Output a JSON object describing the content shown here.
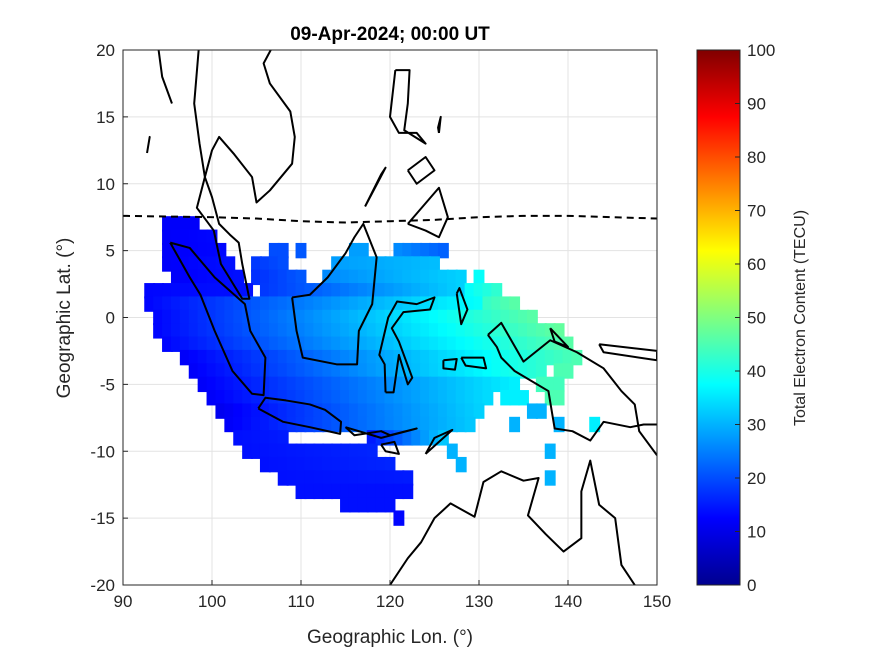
{
  "chart_data": {
    "type": "heatmap",
    "title": "09-Apr-2024; 00:00 UT",
    "xlabel": "Geographic Lon. (°)",
    "ylabel": "Geographic Lat. (°)",
    "xlim": [
      90,
      150
    ],
    "ylim": [
      -20,
      20
    ],
    "xticks": [
      "90",
      "100",
      "110",
      "120",
      "130",
      "140",
      "150"
    ],
    "yticks": [
      "20",
      "15",
      "10",
      "5",
      "0",
      "-5",
      "-10",
      "-15",
      "-20"
    ],
    "grid": true,
    "colorbar": {
      "label": "Total Electron Content (TECU)",
      "colormap": "jet",
      "range": [
        0,
        100
      ],
      "ticks": [
        "100",
        "90",
        "80",
        "70",
        "60",
        "50",
        "40",
        "30",
        "20",
        "10",
        "0"
      ]
    },
    "tec_cells_by_latitude": [
      {
        "lat": 7,
        "spans": [
          [
            95,
            98,
            12,
            12
          ]
        ]
      },
      {
        "lat": 6,
        "spans": [
          [
            95,
            100,
            12,
            13
          ]
        ]
      },
      {
        "lat": 5,
        "spans": [
          [
            95,
            101,
            12,
            13
          ],
          [
            107,
            108,
            20,
            20
          ],
          [
            110,
            110,
            21,
            21
          ],
          [
            116,
            117,
            28,
            28
          ],
          [
            121,
            126,
            26,
            22
          ]
        ]
      },
      {
        "lat": 4,
        "spans": [
          [
            95,
            102,
            12,
            14
          ],
          [
            105,
            108,
            18,
            20
          ],
          [
            114,
            125,
            28,
            31
          ]
        ]
      },
      {
        "lat": 3,
        "spans": [
          [
            96,
            103,
            12,
            14
          ],
          [
            105,
            110,
            17,
            21
          ],
          [
            113,
            128,
            26,
            33
          ],
          [
            130,
            130,
            38,
            38
          ]
        ]
      },
      {
        "lat": 2,
        "spans": [
          [
            93,
            104,
            13,
            14
          ],
          [
            106,
            128,
            18,
            33
          ],
          [
            129,
            132,
            38,
            42
          ]
        ]
      },
      {
        "lat": 1,
        "spans": [
          [
            93,
            130,
            13,
            38
          ],
          [
            131,
            134,
            43,
            46
          ]
        ]
      },
      {
        "lat": 0,
        "spans": [
          [
            94,
            136,
            13,
            46
          ]
        ]
      },
      {
        "lat": -1,
        "spans": [
          [
            94,
            139,
            13,
            47
          ]
        ]
      },
      {
        "lat": -2,
        "spans": [
          [
            95,
            140,
            13,
            46
          ]
        ]
      },
      {
        "lat": -3,
        "spans": [
          [
            97,
            141,
            12,
            45
          ]
        ]
      },
      {
        "lat": -4,
        "spans": [
          [
            98,
            137,
            12,
            42
          ],
          [
            139,
            140,
            45,
            45
          ]
        ]
      },
      {
        "lat": -5,
        "spans": [
          [
            99,
            134,
            12,
            36
          ],
          [
            137,
            139,
            44,
            44
          ]
        ]
      },
      {
        "lat": -6,
        "spans": [
          [
            100,
            131,
            12,
            34
          ],
          [
            133,
            135,
            36,
            36
          ],
          [
            138,
            139,
            45,
            45
          ]
        ]
      },
      {
        "lat": -7,
        "spans": [
          [
            101,
            130,
            11,
            33
          ],
          [
            136,
            137,
            30,
            30
          ]
        ]
      },
      {
        "lat": -8,
        "spans": [
          [
            102,
            129,
            12,
            32
          ],
          [
            134,
            134,
            30,
            30
          ],
          [
            139,
            139,
            30,
            30
          ],
          [
            143,
            143,
            36,
            36
          ]
        ]
      },
      {
        "lat": -9,
        "spans": [
          [
            103,
            108,
            14,
            15
          ],
          [
            118,
            126,
            15,
            32
          ]
        ]
      },
      {
        "lat": -10,
        "spans": [
          [
            104,
            118,
            14,
            16
          ],
          [
            127,
            127,
            30,
            30
          ],
          [
            138,
            138,
            30,
            30
          ]
        ]
      },
      {
        "lat": -11,
        "spans": [
          [
            106,
            120,
            14,
            16
          ],
          [
            128,
            128,
            30,
            30
          ]
        ]
      },
      {
        "lat": -12,
        "spans": [
          [
            108,
            122,
            14,
            15
          ],
          [
            138,
            138,
            30,
            30
          ]
        ]
      },
      {
        "lat": -13,
        "spans": [
          [
            110,
            122,
            14,
            14
          ]
        ]
      },
      {
        "lat": -14,
        "spans": [
          [
            115,
            120,
            14,
            14
          ]
        ]
      },
      {
        "lat": -15,
        "spans": [
          [
            121,
            121,
            13,
            13
          ]
        ]
      }
    ],
    "magnetic_equator": [
      [
        90,
        7.6
      ],
      [
        100,
        7.5
      ],
      [
        105,
        7.4
      ],
      [
        110,
        7.2
      ],
      [
        115,
        7.1
      ],
      [
        120,
        7.2
      ],
      [
        125,
        7.3
      ],
      [
        130,
        7.5
      ],
      [
        135,
        7.6
      ],
      [
        140,
        7.6
      ],
      [
        145,
        7.5
      ],
      [
        150,
        7.4
      ]
    ],
    "coastlines": [
      [
        [
          94,
          20
        ],
        [
          94.4,
          18
        ],
        [
          95.5,
          16
        ]
      ],
      [
        [
          98.5,
          20
        ],
        [
          98,
          16
        ],
        [
          98.6,
          13
        ],
        [
          99.2,
          10.5
        ],
        [
          98.3,
          8.2
        ],
        [
          100.2,
          6.5
        ],
        [
          101,
          4
        ],
        [
          103.4,
          1.4
        ],
        [
          104.2,
          1.4
        ],
        [
          103.4,
          4
        ],
        [
          103,
          5.6
        ],
        [
          102,
          6.2
        ],
        [
          100.8,
          7
        ],
        [
          100,
          9
        ],
        [
          99.2,
          10.5
        ],
        [
          100,
          12.5
        ],
        [
          100.8,
          13.5
        ],
        [
          102.5,
          12.2
        ],
        [
          104.5,
          10.5
        ],
        [
          105,
          8.6
        ],
        [
          106.5,
          9.5
        ],
        [
          109,
          11.5
        ],
        [
          109.3,
          13.5
        ],
        [
          108.8,
          15.4
        ],
        [
          106.5,
          17.5
        ],
        [
          105.8,
          19
        ],
        [
          106.6,
          20
        ]
      ],
      [
        [
          95.3,
          5.6
        ],
        [
          97.5,
          5.2
        ],
        [
          100.3,
          3
        ],
        [
          103.7,
          1
        ],
        [
          104.3,
          -1
        ],
        [
          106,
          -3
        ],
        [
          105.8,
          -5.8
        ],
        [
          104.5,
          -5.7
        ],
        [
          102.3,
          -4
        ],
        [
          100.3,
          -1
        ],
        [
          98.7,
          1.7
        ],
        [
          97.5,
          3
        ],
        [
          95.3,
          5.6
        ]
      ],
      [
        [
          109,
          1.5
        ],
        [
          109.5,
          -1
        ],
        [
          110.2,
          -3
        ],
        [
          114,
          -3.5
        ],
        [
          116.3,
          -3.5
        ],
        [
          116.5,
          -1
        ],
        [
          118,
          1
        ],
        [
          118.5,
          4.5
        ],
        [
          117,
          7
        ],
        [
          116,
          6
        ],
        [
          115,
          4.8
        ],
        [
          113,
          3
        ],
        [
          111,
          1.7
        ],
        [
          109,
          1.5
        ]
      ],
      [
        [
          105.2,
          -6.8
        ],
        [
          106,
          -6
        ],
        [
          108.3,
          -6.2
        ],
        [
          111,
          -6.5
        ],
        [
          112.7,
          -6.9
        ],
        [
          114.5,
          -7.8
        ],
        [
          114.4,
          -8.7
        ],
        [
          111,
          -8.2
        ],
        [
          108,
          -7.8
        ],
        [
          105.2,
          -6.8
        ]
      ],
      [
        [
          115,
          -8.2
        ],
        [
          116,
          -8.8
        ],
        [
          119,
          -8.5
        ],
        [
          120,
          -8.8
        ],
        [
          123,
          -8.3
        ],
        [
          119,
          -9
        ],
        [
          115,
          -8.2
        ]
      ],
      [
        [
          119.5,
          -5.6
        ],
        [
          119.4,
          -3.5
        ],
        [
          118.8,
          -2.8
        ],
        [
          119.8,
          0
        ],
        [
          120.8,
          1.2
        ],
        [
          123,
          1
        ],
        [
          125,
          1.5
        ],
        [
          124.5,
          0.6
        ],
        [
          121.5,
          0.4
        ],
        [
          120.2,
          -0.8
        ],
        [
          121,
          -1.8
        ],
        [
          122.5,
          -4.5
        ],
        [
          122,
          -5
        ],
        [
          121,
          -2.8
        ],
        [
          120.4,
          -5.6
        ],
        [
          119.5,
          -5.6
        ]
      ],
      [
        [
          119,
          -9.5
        ],
        [
          120.5,
          -9.3
        ],
        [
          121,
          -10.2
        ],
        [
          119.5,
          -10
        ],
        [
          119,
          -9.5
        ]
      ],
      [
        [
          124,
          -10.2
        ],
        [
          127,
          -8.4
        ],
        [
          125,
          -9
        ],
        [
          124,
          -10.2
        ]
      ],
      [
        [
          127.5,
          1.8
        ],
        [
          128,
          -0.5
        ],
        [
          128.7,
          0.6
        ],
        [
          127.8,
          2.2
        ],
        [
          127.5,
          1.8
        ]
      ],
      [
        [
          126,
          -3.2
        ],
        [
          127.5,
          -3.1
        ],
        [
          127.3,
          -3.9
        ],
        [
          126,
          -3.8
        ],
        [
          126,
          -3.2
        ]
      ],
      [
        [
          128,
          -3
        ],
        [
          130.5,
          -3
        ],
        [
          130.8,
          -3.8
        ],
        [
          128.5,
          -3.6
        ],
        [
          128,
          -3
        ]
      ],
      [
        [
          131,
          -1.3
        ],
        [
          132.5,
          -0.4
        ],
        [
          135,
          -3.3
        ],
        [
          138,
          -1.7
        ],
        [
          141,
          -2.6
        ],
        [
          144,
          -3.8
        ],
        [
          146,
          -5.5
        ],
        [
          147.5,
          -6.5
        ],
        [
          148,
          -8.5
        ],
        [
          150,
          -10.3
        ]
      ],
      [
        [
          150,
          -8
        ],
        [
          148.5,
          -8
        ],
        [
          147,
          -8.2
        ],
        [
          144,
          -7.8
        ],
        [
          142.5,
          -9.2
        ],
        [
          140.5,
          -8.5
        ],
        [
          138.5,
          -8.3
        ],
        [
          137.8,
          -5.5
        ],
        [
          134,
          -4
        ],
        [
          132.5,
          -3
        ],
        [
          132,
          -2.2
        ],
        [
          131,
          -1.3
        ]
      ],
      [
        [
          120,
          -20
        ],
        [
          122,
          -18
        ],
        [
          123.5,
          -16.8
        ],
        [
          125,
          -15
        ],
        [
          126.8,
          -13.9
        ],
        [
          129.5,
          -14.9
        ],
        [
          130.5,
          -12.3
        ],
        [
          132.5,
          -11.5
        ],
        [
          135,
          -12.2
        ],
        [
          136.7,
          -12
        ],
        [
          135.5,
          -14.8
        ],
        [
          137.5,
          -16.2
        ],
        [
          139.5,
          -17.5
        ],
        [
          141.5,
          -16.5
        ],
        [
          141.5,
          -13
        ],
        [
          142.5,
          -10.7
        ],
        [
          143.5,
          -14
        ],
        [
          145.3,
          -15
        ],
        [
          146,
          -18.5
        ],
        [
          147.5,
          -20
        ]
      ],
      [
        [
          120.6,
          18.5
        ],
        [
          122.2,
          18.5
        ],
        [
          122,
          16
        ],
        [
          121.6,
          14
        ],
        [
          124,
          13
        ],
        [
          123,
          13.8
        ],
        [
          121,
          13.8
        ],
        [
          120,
          15
        ],
        [
          120.6,
          18.5
        ]
      ],
      [
        [
          122,
          7
        ],
        [
          125.5,
          9.7
        ],
        [
          126.5,
          7.5
        ],
        [
          125.5,
          6
        ],
        [
          124,
          6.5
        ],
        [
          122,
          7
        ]
      ],
      [
        [
          117.2,
          8.3
        ],
        [
          119.5,
          11.2
        ],
        [
          119,
          10.7
        ],
        [
          117.2,
          8.3
        ]
      ],
      [
        [
          122,
          11
        ],
        [
          124,
          12
        ],
        [
          125,
          11
        ],
        [
          123,
          10
        ],
        [
          122,
          11
        ]
      ],
      [
        [
          125.5,
          13.8
        ],
        [
          125.7,
          15
        ],
        [
          125.4,
          14.2
        ],
        [
          125.5,
          13.8
        ]
      ],
      [
        [
          92.7,
          12.3
        ],
        [
          93,
          13.5
        ],
        [
          92.8,
          12.7
        ],
        [
          92.7,
          12.3
        ]
      ],
      [
        [
          138,
          -0.8
        ],
        [
          140,
          -2.2
        ],
        [
          138.5,
          -1.8
        ],
        [
          138,
          -0.8
        ]
      ],
      [
        [
          143.5,
          -2
        ],
        [
          150,
          -2.5
        ],
        [
          150,
          -3.2
        ],
        [
          144,
          -2.6
        ],
        [
          143.5,
          -2
        ]
      ]
    ]
  }
}
